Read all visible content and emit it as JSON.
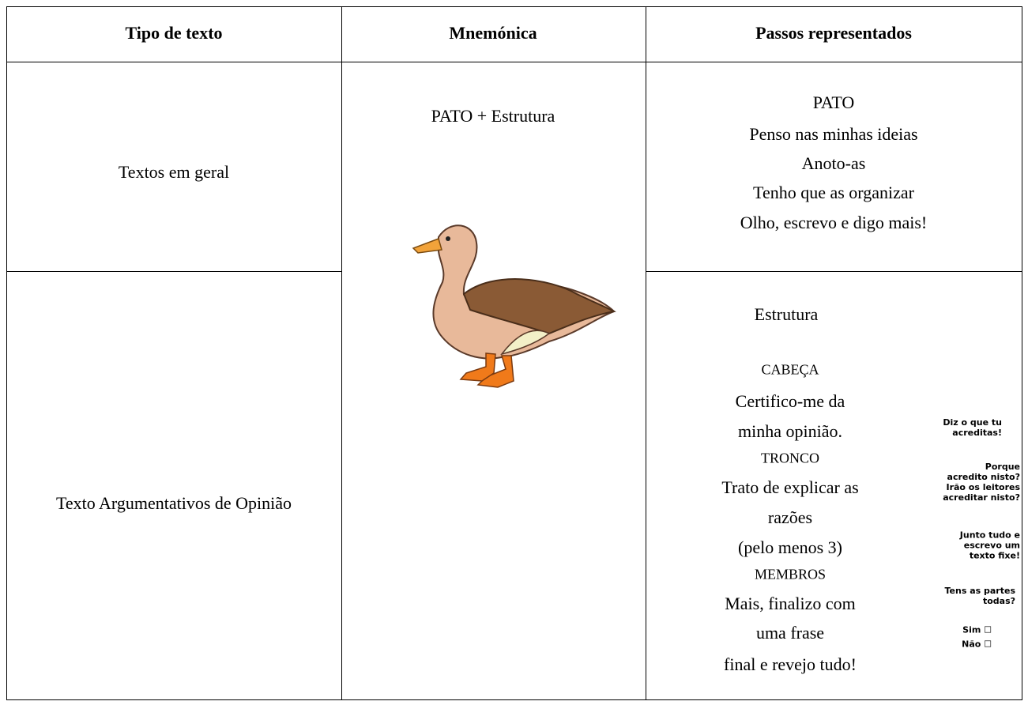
{
  "header": {
    "columns": [
      "Tipo de texto",
      "Mnemónica",
      "Passos representados"
    ]
  },
  "mnemonic": "PATO + Estrutura",
  "rows": [
    {
      "type": "Textos em geral",
      "steps": [
        "PATO",
        "Penso nas minhas ideias",
        "Anoto-as",
        "Tenho que as organizar",
        "Olho, escrevo e digo mais!"
      ]
    },
    {
      "type": "Texto Argumentativos de Opinião",
      "title": "Estrutura",
      "steps": [
        "CABEÇA",
        "Certifico-me da",
        "minha opinião.",
        "TRONCO",
        "Trato de explicar as",
        "razões",
        "(pelo menos 3)",
        "MEMBROS",
        "Mais, finalizo com",
        "uma frase",
        "final e revejo tudo!"
      ],
      "notes": [
        [
          "Diz o que tu",
          "acreditas!"
        ],
        [
          "Porque",
          "acredito nisto?",
          "Irão os leitores",
          "acreditar nisto?"
        ],
        [
          "Junto tudo e",
          "escrevo um",
          "texto fixe!"
        ],
        [
          "Tens as partes",
          "todas?"
        ],
        [
          "Sim ☐"
        ],
        [
          "Não ☐"
        ]
      ]
    }
  ]
}
